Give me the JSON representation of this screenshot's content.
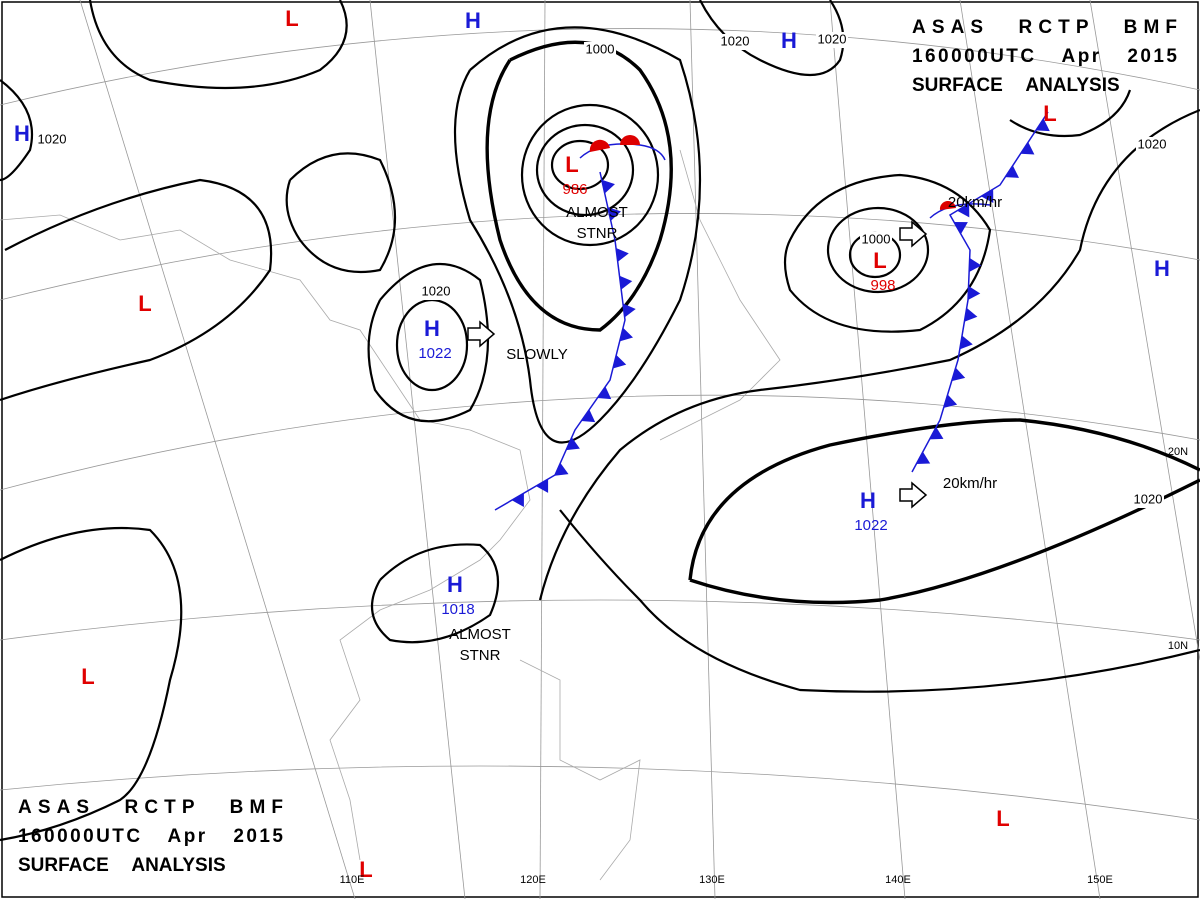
{
  "header": {
    "lines": [
      "ASAS RCTP BMF",
      "160000UTC Apr 2015",
      "SURFACE ANALYSIS"
    ]
  },
  "footer": {
    "lines": [
      "ASAS RCTP BMF",
      "160000UTC Apr 2015",
      "SURFACE ANALYSIS"
    ]
  },
  "centers": [
    {
      "symbol": "H",
      "value": "1022"
    },
    {
      "symbol": "H",
      "value": "1018"
    },
    {
      "symbol": "H",
      "value": "1022"
    },
    {
      "symbol": "L",
      "value": "986"
    },
    {
      "symbol": "L",
      "value": "998"
    },
    {
      "symbol": "H"
    },
    {
      "symbol": "H"
    },
    {
      "symbol": "H"
    },
    {
      "symbol": "H"
    },
    {
      "symbol": "L"
    },
    {
      "symbol": "L"
    },
    {
      "symbol": "L"
    },
    {
      "symbol": "L"
    },
    {
      "symbol": "L"
    },
    {
      "symbol": "L"
    }
  ],
  "isobar_labels": [
    "1000",
    "1020",
    "1020",
    "1020",
    "1020",
    "1000",
    "1020",
    "1020"
  ],
  "annotations": [
    {
      "lines": [
        "ALMOST",
        "STNR"
      ]
    },
    {
      "lines": [
        "SLOWLY"
      ]
    },
    {
      "lines": [
        "ALMOST",
        "STNR"
      ]
    },
    {
      "lines": [
        "20km/hr"
      ]
    },
    {
      "lines": [
        "20km/hr"
      ]
    }
  ],
  "latitude_labels": [
    "20N",
    "10N"
  ],
  "longitude_labels": [
    "110E",
    "120E",
    "130E",
    "140E",
    "150E"
  ]
}
